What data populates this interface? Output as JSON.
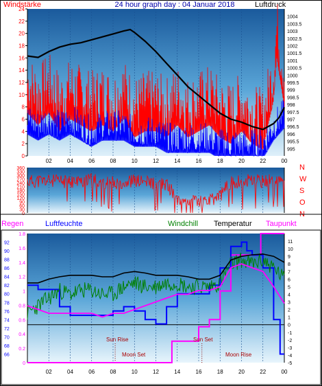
{
  "chart_data": [
    {
      "type": "line",
      "title": "24 hour graph day : 04 Januar 2018",
      "left_axis_label": "Windstärke",
      "right_axis_label": "Luftdruck",
      "x_ticks": [
        "02",
        "04",
        "06",
        "08",
        "10",
        "12",
        "14",
        "16",
        "18",
        "20",
        "22",
        "00"
      ],
      "x_range": [
        0,
        24
      ],
      "left_ylim": [
        0,
        24
      ],
      "left_ticks": [
        0,
        2,
        4,
        6,
        8,
        10,
        12,
        14,
        16,
        18,
        20,
        22,
        24
      ],
      "right_ylim": [
        994.5,
        1004.5
      ],
      "right_ticks": [
        995,
        995.5,
        996,
        996.5,
        997,
        997.5,
        998,
        998.5,
        999,
        999.5,
        1000,
        1000.5,
        1001,
        1001.5,
        1002,
        1002.5,
        1003,
        1003.5,
        1004
      ],
      "series": [
        {
          "name": "Luftdruck",
          "axis": "right",
          "color": "#000000",
          "points": [
            [
              0,
              1001.3
            ],
            [
              1,
              1001.2
            ],
            [
              2,
              1001.6
            ],
            [
              3,
              1001.9
            ],
            [
              4,
              1002.1
            ],
            [
              5,
              1002.2
            ],
            [
              6,
              1002.4
            ],
            [
              7,
              1002.6
            ],
            [
              8,
              1002.8
            ],
            [
              9,
              1003.0
            ],
            [
              9.6,
              1003.1
            ],
            [
              10,
              1002.9
            ],
            [
              11,
              1002.3
            ],
            [
              12,
              1001.6
            ],
            [
              13,
              1000.8
            ],
            [
              14,
              1000.0
            ],
            [
              15,
              999.2
            ],
            [
              16,
              998.6
            ],
            [
              17,
              998.0
            ],
            [
              18,
              997.4
            ],
            [
              19,
              997.0
            ],
            [
              20,
              996.8
            ],
            [
              21,
              996.5
            ],
            [
              22,
              996.3
            ],
            [
              23,
              996.7
            ],
            [
              23.5,
              997.1
            ],
            [
              24,
              997.8
            ]
          ]
        },
        {
          "name": "Windböen",
          "axis": "left",
          "color": "#ff0000",
          "points": [
            [
              0,
              12
            ],
            [
              1,
              10
            ],
            [
              2,
              12
            ],
            [
              3,
              9
            ],
            [
              4,
              11
            ],
            [
              5,
              10
            ],
            [
              6,
              9
            ],
            [
              7,
              10
            ],
            [
              8,
              9
            ],
            [
              9,
              11
            ],
            [
              10,
              8
            ],
            [
              11,
              9
            ],
            [
              12,
              9
            ],
            [
              13,
              8
            ],
            [
              14,
              10
            ],
            [
              15,
              8
            ],
            [
              16,
              9
            ],
            [
              17,
              10
            ],
            [
              18,
              8
            ],
            [
              19,
              7
            ],
            [
              20,
              9
            ],
            [
              21,
              7
            ],
            [
              22,
              6
            ],
            [
              23,
              14
            ],
            [
              23.3,
              21
            ],
            [
              24,
              13
            ]
          ]
        },
        {
          "name": "Windmittel",
          "axis": "left",
          "color": "#0000ff",
          "points": [
            [
              0,
              6
            ],
            [
              1,
              5
            ],
            [
              2,
              6
            ],
            [
              3,
              5
            ],
            [
              4,
              6
            ],
            [
              5,
              5
            ],
            [
              6,
              4
            ],
            [
              7,
              5
            ],
            [
              8,
              5
            ],
            [
              9,
              5
            ],
            [
              10,
              4
            ],
            [
              11,
              4
            ],
            [
              12,
              4
            ],
            [
              13,
              3
            ],
            [
              14,
              3
            ],
            [
              15,
              3
            ],
            [
              16,
              3
            ],
            [
              17,
              3
            ],
            [
              18,
              2
            ],
            [
              19,
              2
            ],
            [
              20,
              2
            ],
            [
              21,
              2
            ],
            [
              22,
              2
            ],
            [
              23,
              5
            ],
            [
              24,
              7
            ]
          ]
        }
      ]
    },
    {
      "type": "line",
      "right_axis_labels": [
        "N",
        "W",
        "S",
        "O",
        "N"
      ],
      "x_range": [
        0,
        24
      ],
      "ylim": [
        0,
        360
      ],
      "y_ticks": [
        0,
        30,
        60,
        90,
        120,
        150,
        180,
        210,
        240,
        270,
        300,
        330,
        360
      ],
      "series": [
        {
          "name": "Windrichtung",
          "color": "#ff0000",
          "points": [
            [
              0,
              250
            ],
            [
              2,
              255
            ],
            [
              4,
              245
            ],
            [
              6,
              260
            ],
            [
              8,
              240
            ],
            [
              10,
              255
            ],
            [
              12,
              235
            ],
            [
              13,
              225
            ],
            [
              14,
              115
            ],
            [
              16,
              95
            ],
            [
              17,
              90
            ],
            [
              18,
              140
            ],
            [
              19,
              245
            ],
            [
              21,
              255
            ],
            [
              22,
              250
            ],
            [
              24,
              265
            ]
          ]
        }
      ]
    },
    {
      "type": "line",
      "legend": [
        "Regen",
        "Luftfeuchte",
        "Windchill",
        "Temperatur",
        "Taupunkt"
      ],
      "annotations": [
        "Sun Rise",
        "Moon Set",
        "Sun Set",
        "Moon Rise"
      ],
      "x_ticks": [
        "02",
        "04",
        "06",
        "08",
        "10",
        "12",
        "14",
        "16",
        "18",
        "20",
        "22",
        "00"
      ],
      "x_range": [
        0,
        24
      ],
      "regen_ylim": [
        0,
        1.8
      ],
      "regen_ticks": [
        0,
        0.2,
        0.4,
        0.6,
        0.8,
        1,
        1.2,
        1.4,
        1.6,
        1.8
      ],
      "luftfeuchte_ylim": [
        64,
        94
      ],
      "luftfeuchte_ticks": [
        66,
        68,
        70,
        72,
        74,
        76,
        78,
        80,
        82,
        84,
        86,
        88,
        90,
        92
      ],
      "temperature_ylim": [
        -5,
        12
      ],
      "temperature_ticks": [
        -5,
        -4,
        -3,
        -2,
        -1,
        0,
        1,
        2,
        3,
        4,
        5,
        6,
        7,
        8,
        9,
        10,
        11
      ],
      "series": [
        {
          "name": "Regen",
          "axis": "regen",
          "color": "#ff00ff",
          "points": [
            [
              0,
              0
            ],
            [
              11.5,
              0
            ],
            [
              12.5,
              0
            ],
            [
              13,
              0
            ],
            [
              13.5,
              0.3
            ],
            [
              15.5,
              0.3
            ],
            [
              16,
              0.5
            ],
            [
              17,
              0.6
            ],
            [
              17.5,
              0.6
            ],
            [
              18,
              1.0
            ],
            [
              19,
              1.5
            ],
            [
              21.5,
              1.5
            ],
            [
              21.8,
              1.8
            ],
            [
              24,
              1.8
            ]
          ]
        },
        {
          "name": "Luftfeuchte",
          "axis": "luftfeuchte",
          "color": "#0000ff",
          "points": [
            [
              0,
              82
            ],
            [
              1,
              81
            ],
            [
              2,
              81
            ],
            [
              3,
              77
            ],
            [
              4,
              75
            ],
            [
              5,
              75
            ],
            [
              6,
              75
            ],
            [
              7,
              75
            ],
            [
              8,
              76
            ],
            [
              9,
              77
            ],
            [
              10,
              76
            ],
            [
              11,
              74
            ],
            [
              12,
              73
            ],
            [
              12.5,
              73
            ],
            [
              13,
              77
            ],
            [
              14,
              80
            ],
            [
              15,
              80
            ],
            [
              16,
              80
            ],
            [
              17,
              82
            ],
            [
              18,
              86
            ],
            [
              19,
              91
            ],
            [
              20,
              92
            ],
            [
              20.5,
              90
            ],
            [
              21,
              89
            ],
            [
              22,
              86
            ],
            [
              23,
              74
            ],
            [
              23.6,
              66
            ],
            [
              24,
              66
            ]
          ]
        },
        {
          "name": "Windchill",
          "axis": "temperature",
          "color": "#008000",
          "points": [
            [
              0,
              1.5
            ],
            [
              1,
              2.5
            ],
            [
              2,
              3.5
            ],
            [
              3,
              4.5
            ],
            [
              4,
              4.0
            ],
            [
              5,
              4.5
            ],
            [
              6,
              4.5
            ],
            [
              7,
              4.0
            ],
            [
              8,
              4.0
            ],
            [
              9,
              5.0
            ],
            [
              10,
              5.5
            ],
            [
              11,
              5.0
            ],
            [
              12,
              5.0
            ],
            [
              13,
              5.5
            ],
            [
              14,
              5.5
            ],
            [
              15,
              5.0
            ],
            [
              16,
              5.0
            ],
            [
              17,
              5.0
            ],
            [
              18,
              5.5
            ],
            [
              19,
              8.0
            ],
            [
              20,
              8.5
            ],
            [
              21,
              8.0
            ],
            [
              22,
              8.5
            ],
            [
              23,
              7.5
            ],
            [
              24,
              6.0
            ]
          ]
        },
        {
          "name": "Temperatur",
          "axis": "temperature",
          "color": "#000000",
          "points": [
            [
              0,
              5.5
            ],
            [
              1,
              5.5
            ],
            [
              2,
              6.0
            ],
            [
              3,
              6.3
            ],
            [
              4,
              6.5
            ],
            [
              5,
              6.5
            ],
            [
              6,
              6.5
            ],
            [
              7,
              6.3
            ],
            [
              8,
              6.3
            ],
            [
              9,
              6.8
            ],
            [
              10,
              7.0
            ],
            [
              11,
              6.8
            ],
            [
              12,
              6.5
            ],
            [
              13,
              6.5
            ],
            [
              14,
              6.5
            ],
            [
              15,
              6.3
            ],
            [
              16,
              6.0
            ],
            [
              17,
              6.0
            ],
            [
              18,
              6.5
            ],
            [
              19,
              8.5
            ],
            [
              20,
              9.0
            ],
            [
              21,
              9.2
            ],
            [
              22,
              9.3
            ],
            [
              23,
              9.0
            ],
            [
              24,
              8.2
            ]
          ]
        },
        {
          "name": "Taupunkt",
          "axis": "temperature",
          "color": "#ff00ff",
          "points": [
            [
              0,
              2.5
            ],
            [
              1,
              2.0
            ],
            [
              2,
              1.5
            ],
            [
              3,
              1.5
            ],
            [
              4,
              1.5
            ],
            [
              5,
              1.5
            ],
            [
              6,
              1.5
            ],
            [
              7,
              1.0
            ],
            [
              8,
              1.5
            ],
            [
              9,
              1.5
            ],
            [
              10,
              2.0
            ],
            [
              11,
              2.5
            ],
            [
              12,
              3.0
            ],
            [
              13,
              3.5
            ],
            [
              14,
              4.0
            ],
            [
              15,
              4.0
            ],
            [
              16,
              4.5
            ],
            [
              17,
              4.5
            ],
            [
              18,
              5.0
            ],
            [
              19,
              7.5
            ],
            [
              20,
              8.0
            ],
            [
              21,
              7.5
            ],
            [
              22,
              7.0
            ],
            [
              23,
              5.0
            ],
            [
              24,
              2.8
            ]
          ]
        }
      ]
    }
  ]
}
